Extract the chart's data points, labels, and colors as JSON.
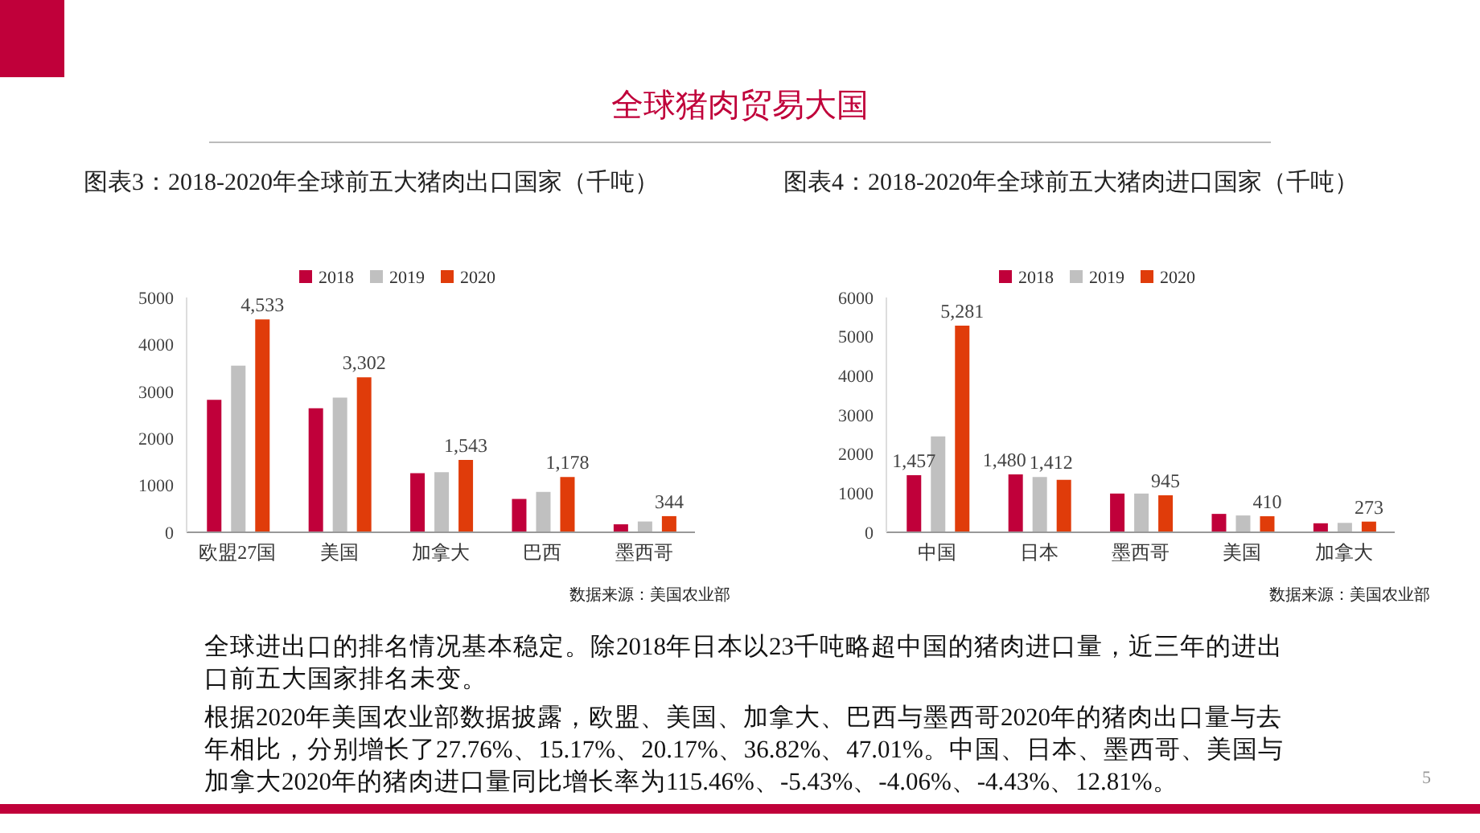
{
  "chart_data": [
    {
      "type": "other",
      "title": "全球猪肉贸易大国"
    },
    {
      "type": "bar",
      "title": "图表3：2018-2020年全球前五大猪肉出口国家（千吨）",
      "categories": [
        "欧盟27国",
        "美国",
        "加拿大",
        "巴西",
        "墨西哥"
      ],
      "series": [
        {
          "name": "2018",
          "color": "#c0003a",
          "values": [
            2820,
            2640,
            1260,
            710,
            170
          ]
        },
        {
          "name": "2019",
          "color": "#c0c0c0",
          "values": [
            3550,
            2870,
            1280,
            860,
            230
          ]
        },
        {
          "name": "2020",
          "color": "#e03c0a",
          "values": [
            4533,
            3302,
            1543,
            1178,
            344
          ],
          "value_labels": [
            "4,533",
            "3,302",
            "1,543",
            "1,178",
            "344"
          ]
        }
      ],
      "ylim": [
        0,
        5000
      ],
      "yticks": [
        0,
        1000,
        2000,
        3000,
        4000,
        5000
      ],
      "grid": false,
      "legend": "top",
      "annotations": [
        "数据来源：美国农业部"
      ]
    },
    {
      "type": "bar",
      "title": "图表4：2018-2020年全球前五大猪肉进口国家（千吨）",
      "categories": [
        "中国",
        "日本",
        "墨西哥",
        "美国",
        "加拿大"
      ],
      "series": [
        {
          "name": "2018",
          "color": "#c0003a",
          "values": [
            1457,
            1480,
            990,
            470,
            230
          ],
          "value_labels": [
            "1,457",
            "1,480",
            null,
            null,
            null
          ]
        },
        {
          "name": "2019",
          "color": "#c0c0c0",
          "values": [
            2450,
            1412,
            990,
            430,
            240
          ],
          "value_labels": [
            null,
            "1,412",
            null,
            null,
            null
          ]
        },
        {
          "name": "2020",
          "color": "#e03c0a",
          "values": [
            5281,
            1340,
            945,
            410,
            273
          ],
          "value_labels": [
            "5,281",
            null,
            "945",
            "410",
            "273"
          ]
        }
      ],
      "ylim": [
        0,
        6000
      ],
      "yticks": [
        0,
        1000,
        2000,
        3000,
        4000,
        5000,
        6000
      ],
      "grid": false,
      "legend": "top",
      "annotations": [
        "数据来源：美国农业部"
      ]
    },
    {
      "type": "other",
      "annotations": [
        "全球进出口的排名情况基本稳定。除2018年日本以23千吨略超中国的猪肉进口量，近三年的进出口前五大国家排名未变。",
        "根据2020年美国农业部数据披露，欧盟、美国、加拿大、巴西与墨西哥2020年的猪肉出口量与去年相比，分别增长了27.76%、15.17%、20.17%、36.82%、47.01%。中国、日本、墨西哥、美国与加拿大2020年的猪肉进口量同比增长率为115.46%、-5.43%、-4.06%、-4.43%、12.81%。",
        "5"
      ]
    }
  ]
}
